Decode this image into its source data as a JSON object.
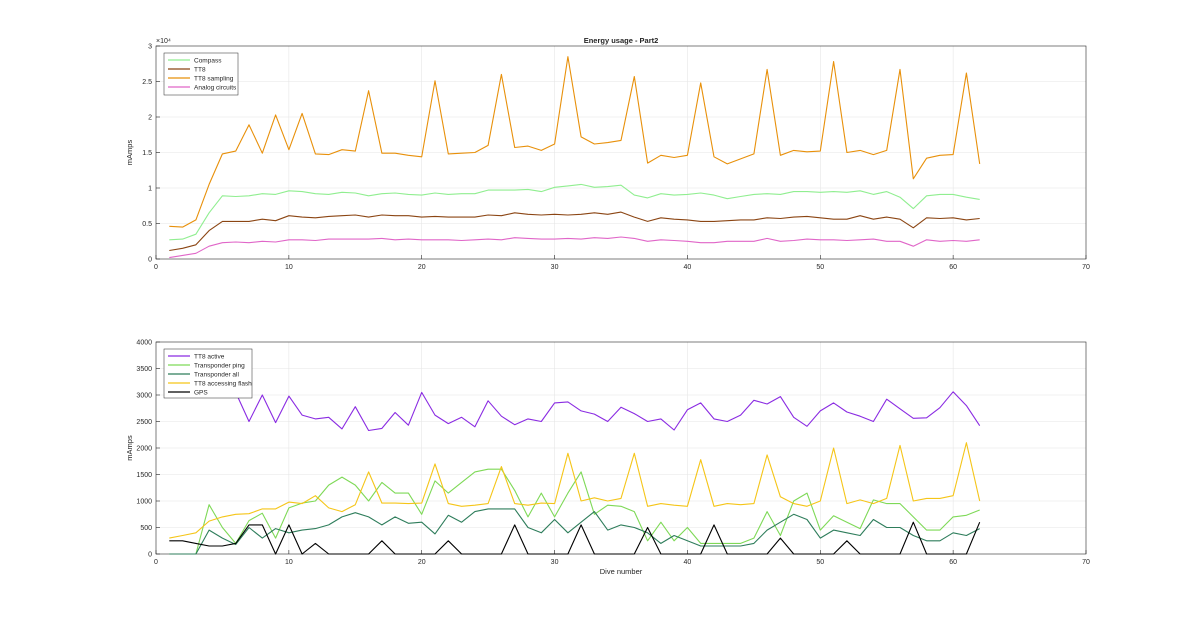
{
  "chart_data": [
    {
      "type": "line",
      "title": "Energy usage - Part2",
      "xlabel": "",
      "ylabel": "mAmps",
      "xlim": [
        0,
        70
      ],
      "ylim": [
        0,
        30000
      ],
      "x_ticks": [
        0,
        10,
        20,
        30,
        40,
        50,
        60,
        70
      ],
      "y_ticks": [
        0,
        5000,
        10000,
        15000,
        20000,
        25000,
        30000
      ],
      "y_tick_labels": [
        "0",
        "0.5",
        "1",
        "1.5",
        "2",
        "2.5",
        "3"
      ],
      "y_exponent_label": "×10⁴",
      "grid": true,
      "legend_position": "top-left",
      "x": [
        1,
        2,
        3,
        4,
        5,
        6,
        7,
        8,
        9,
        10,
        11,
        12,
        13,
        14,
        15,
        16,
        17,
        18,
        19,
        20,
        21,
        22,
        23,
        24,
        25,
        26,
        27,
        28,
        29,
        30,
        31,
        32,
        33,
        34,
        35,
        36,
        37,
        38,
        39,
        40,
        41,
        42,
        43,
        44,
        45,
        46,
        47,
        48,
        49,
        50,
        51,
        52,
        53,
        54,
        55,
        56,
        57,
        58,
        59,
        60,
        61,
        62
      ],
      "series": [
        {
          "name": "Compass",
          "color": "#90ee90",
          "values": [
            2700,
            2800,
            3500,
            6500,
            8900,
            8800,
            8900,
            9200,
            9100,
            9600,
            9500,
            9200,
            9100,
            9400,
            9300,
            8900,
            9200,
            9300,
            9100,
            9000,
            9300,
            9100,
            9200,
            9200,
            9700,
            9700,
            9700,
            9800,
            9500,
            10100,
            10300,
            10500,
            10100,
            10200,
            10400,
            9000,
            8600,
            9200,
            9000,
            9100,
            9300,
            9000,
            8500,
            8800,
            9100,
            9200,
            9100,
            9500,
            9500,
            9400,
            9500,
            9400,
            9600,
            9100,
            9500,
            8700,
            7100,
            8900,
            9100,
            9100,
            8700,
            8400
          ]
        },
        {
          "name": "TT8",
          "color": "#8b4513",
          "values": [
            1200,
            1500,
            2000,
            4000,
            5300,
            5300,
            5300,
            5600,
            5400,
            6100,
            5900,
            5800,
            6000,
            6100,
            6200,
            5900,
            6200,
            6100,
            6100,
            5900,
            6000,
            5900,
            5900,
            5900,
            6200,
            6100,
            6500,
            6300,
            6200,
            6300,
            6200,
            6300,
            6500,
            6300,
            6600,
            5900,
            5300,
            5800,
            5600,
            5500,
            5300,
            5300,
            5400,
            5500,
            5500,
            5800,
            5700,
            5900,
            6000,
            5800,
            5600,
            5600,
            6100,
            5600,
            5900,
            5600,
            4400,
            5800,
            5700,
            5800,
            5500,
            5700
          ]
        },
        {
          "name": "TT8 sampling",
          "color": "#e8900a",
          "values": [
            4600,
            4500,
            5500,
            10500,
            14800,
            15200,
            18900,
            14900,
            20300,
            15400,
            20500,
            14800,
            14700,
            15400,
            15200,
            23700,
            14900,
            14900,
            14600,
            14400,
            25100,
            14800,
            14900,
            15000,
            16000,
            26000,
            15700,
            15900,
            15300,
            16200,
            28500,
            17200,
            16200,
            16400,
            16700,
            25700,
            13500,
            14600,
            14300,
            14600,
            24800,
            14400,
            13400,
            14100,
            14800,
            26700,
            14600,
            15300,
            15100,
            15200,
            27800,
            15000,
            15300,
            14700,
            15300,
            26700,
            11300,
            14200,
            14600,
            14700,
            26200,
            13400
          ]
        },
        {
          "name": "Analog circuits",
          "color": "#e066c8",
          "values": [
            200,
            500,
            800,
            1800,
            2300,
            2400,
            2300,
            2500,
            2400,
            2700,
            2700,
            2600,
            2800,
            2800,
            2800,
            2800,
            2900,
            2700,
            2800,
            2700,
            2700,
            2700,
            2600,
            2700,
            2800,
            2700,
            3000,
            2900,
            2800,
            2800,
            2900,
            2800,
            3000,
            2900,
            3100,
            2900,
            2500,
            2700,
            2600,
            2500,
            2300,
            2300,
            2500,
            2500,
            2500,
            2900,
            2500,
            2600,
            2800,
            2700,
            2700,
            2600,
            2700,
            2800,
            2500,
            2500,
            1800,
            2700,
            2500,
            2600,
            2500,
            2700
          ]
        }
      ]
    },
    {
      "type": "line",
      "title": "",
      "xlabel": "Dive number",
      "ylabel": "mAmps",
      "xlim": [
        0,
        70
      ],
      "ylim": [
        0,
        4000
      ],
      "x_ticks": [
        0,
        10,
        20,
        30,
        40,
        50,
        60,
        70
      ],
      "y_ticks": [
        0,
        500,
        1000,
        1500,
        2000,
        2500,
        3000,
        3500,
        4000
      ],
      "y_tick_labels": [
        "0",
        "500",
        "1000",
        "1500",
        "2000",
        "2500",
        "3000",
        "3500",
        "4000"
      ],
      "grid": true,
      "legend_position": "top-left",
      "x": [
        1,
        2,
        3,
        4,
        5,
        6,
        7,
        8,
        9,
        10,
        11,
        12,
        13,
        14,
        15,
        16,
        17,
        18,
        19,
        20,
        21,
        22,
        23,
        24,
        25,
        26,
        27,
        28,
        29,
        30,
        31,
        32,
        33,
        34,
        35,
        36,
        37,
        38,
        39,
        40,
        41,
        42,
        43,
        44,
        45,
        46,
        47,
        48,
        49,
        50,
        51,
        52,
        53,
        54,
        55,
        56,
        57,
        58,
        59,
        60,
        61,
        62
      ],
      "series": [
        {
          "name": "TT8 active",
          "color": "#8a2be2",
          "x": [
            6,
            7,
            8,
            9,
            10,
            11,
            12,
            13,
            14,
            15,
            16,
            17,
            18,
            19,
            20,
            21,
            22,
            23,
            24,
            25,
            26,
            27,
            28,
            29,
            30,
            31,
            32,
            33,
            34,
            35,
            36,
            37,
            38,
            39,
            40,
            41,
            42,
            43,
            44,
            45,
            46,
            47,
            48,
            49,
            50,
            51,
            52,
            53,
            54,
            55,
            56,
            57,
            58,
            59,
            60,
            61,
            62
          ],
          "values": [
            3050,
            2500,
            3000,
            2480,
            2980,
            2620,
            2550,
            2580,
            2360,
            2780,
            2330,
            2370,
            2670,
            2430,
            3050,
            2620,
            2460,
            2580,
            2400,
            2890,
            2600,
            2440,
            2550,
            2500,
            2850,
            2870,
            2700,
            2640,
            2500,
            2770,
            2650,
            2500,
            2550,
            2340,
            2720,
            2850,
            2550,
            2500,
            2620,
            2900,
            2830,
            2970,
            2580,
            2410,
            2700,
            2850,
            2680,
            2600,
            2500,
            2920,
            2740,
            2560,
            2570,
            2760,
            3060,
            2800,
            2420
          ]
        },
        {
          "name": "Transponder ping",
          "color": "#7ed957",
          "values": [
            0,
            0,
            0,
            930,
            500,
            200,
            630,
            770,
            300,
            870,
            960,
            1000,
            1300,
            1450,
            1300,
            1000,
            1350,
            1150,
            1150,
            750,
            1380,
            1150,
            1350,
            1550,
            1600,
            1600,
            1200,
            700,
            1150,
            700,
            1150,
            1550,
            750,
            920,
            900,
            800,
            250,
            600,
            250,
            500,
            200,
            200,
            200,
            200,
            300,
            800,
            350,
            1000,
            1150,
            450,
            720,
            600,
            480,
            1020,
            950,
            950,
            700,
            450,
            450,
            700,
            730,
            830
          ]
        },
        {
          "name": "Transponder all",
          "color": "#2e7d5b",
          "values": [
            0,
            0,
            0,
            450,
            300,
            180,
            500,
            300,
            480,
            400,
            450,
            480,
            550,
            700,
            780,
            700,
            550,
            700,
            580,
            600,
            380,
            730,
            600,
            800,
            850,
            850,
            850,
            500,
            400,
            650,
            400,
            600,
            800,
            450,
            550,
            500,
            400,
            200,
            350,
            250,
            150,
            150,
            150,
            150,
            200,
            450,
            600,
            750,
            650,
            300,
            450,
            400,
            350,
            650,
            500,
            500,
            350,
            250,
            250,
            400,
            350,
            480
          ]
        },
        {
          "name": "TT8 accessing flash",
          "color": "#f5c518",
          "values": [
            300,
            350,
            400,
            620,
            700,
            750,
            760,
            850,
            850,
            980,
            950,
            1100,
            870,
            800,
            930,
            1550,
            960,
            960,
            950,
            960,
            1700,
            950,
            900,
            920,
            950,
            1650,
            950,
            920,
            960,
            950,
            1900,
            1000,
            1060,
            1000,
            1050,
            1900,
            900,
            950,
            920,
            900,
            1780,
            900,
            950,
            930,
            950,
            1870,
            1080,
            950,
            900,
            1000,
            2000,
            950,
            1020,
            950,
            1050,
            2050,
            1000,
            1050,
            1050,
            1100,
            2100,
            1000
          ]
        },
        {
          "name": "GPS",
          "color": "#000000",
          "values": [
            250,
            250,
            200,
            150,
            150,
            200,
            550,
            550,
            0,
            550,
            0,
            200,
            0,
            0,
            0,
            0,
            250,
            0,
            0,
            0,
            0,
            250,
            0,
            0,
            0,
            0,
            550,
            0,
            0,
            0,
            0,
            550,
            0,
            0,
            0,
            0,
            500,
            0,
            0,
            0,
            0,
            550,
            0,
            0,
            0,
            0,
            300,
            0,
            0,
            0,
            0,
            250,
            0,
            0,
            0,
            0,
            600,
            0,
            0,
            0,
            0,
            600
          ]
        }
      ]
    }
  ]
}
